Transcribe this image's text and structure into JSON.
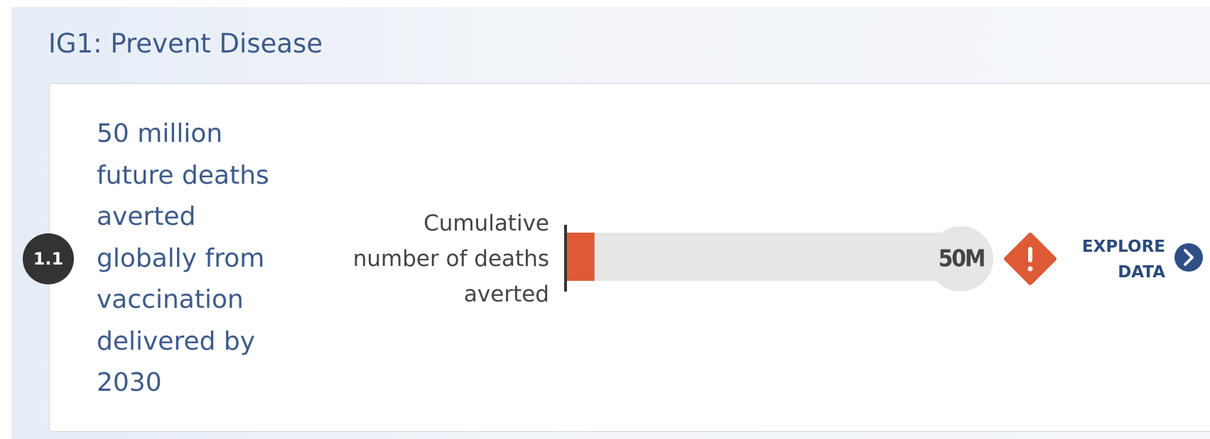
{
  "header": {
    "title": "IG1: Prevent Disease"
  },
  "indicator": {
    "number": "1.1",
    "goal": "50 million future deaths averted globally from vaccination delivered by 2030",
    "measure": "Cumulative number of deaths averted",
    "progress": {
      "value": 3.5,
      "max": {
        "value": 50,
        "label": "50M"
      },
      "color": "#dd5a35"
    },
    "link": "EXPLORE DATA"
  }
}
